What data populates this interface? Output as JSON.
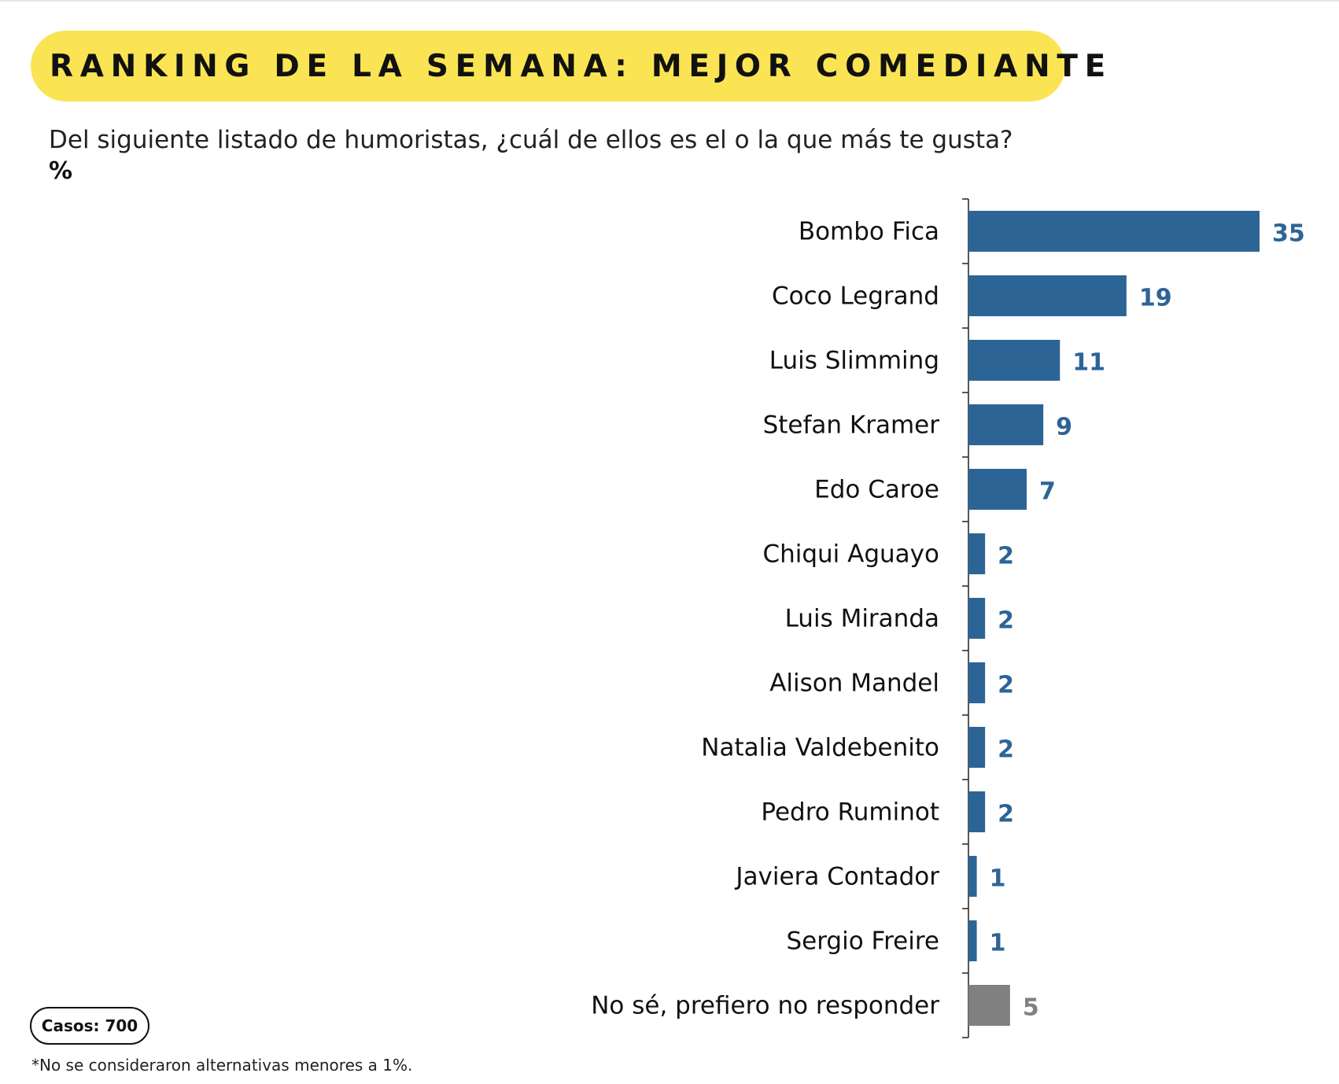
{
  "header": {
    "title": "RANKING DE LA SEMANA: MEJOR COMEDIANTE",
    "question": "Del siguiente listado de humoristas, ¿cuál de ellos es el o la que más te gusta?",
    "unit": "%"
  },
  "footer": {
    "cases": "Casos: 700",
    "note": "*No se consideraron alternativas menores a 1%."
  },
  "colors": {
    "accent": "#fbe453",
    "bar": "#2d6496",
    "bar_other": "#808080",
    "label_value": "#2d6496",
    "label_value_other": "#808080"
  },
  "chart_data": {
    "type": "bar",
    "orientation": "horizontal",
    "title": "RANKING DE LA SEMANA: MEJOR COMEDIANTE",
    "xlabel": "",
    "ylabel": "",
    "unit": "%",
    "xlim": [
      0,
      35
    ],
    "grid": false,
    "categories": [
      "Bombo Fica",
      "Coco Legrand",
      "Luis Slimming",
      "Stefan Kramer",
      "Edo Caroe",
      "Chiqui Aguayo",
      "Luis Miranda",
      "Alison Mandel",
      "Natalia Valdebenito",
      "Pedro Ruminot",
      "Javiera Contador",
      "Sergio Freire",
      "No sé, prefiero no responder"
    ],
    "values": [
      35,
      19,
      11,
      9,
      7,
      2,
      2,
      2,
      2,
      2,
      1,
      1,
      5
    ],
    "value_labels": [
      "35",
      "19",
      "11",
      "9",
      "7",
      "2",
      "2",
      "2",
      "2",
      "2",
      "1",
      "1",
      "5"
    ],
    "highlight": [
      false,
      false,
      false,
      false,
      false,
      false,
      false,
      false,
      false,
      false,
      false,
      false,
      true
    ]
  }
}
